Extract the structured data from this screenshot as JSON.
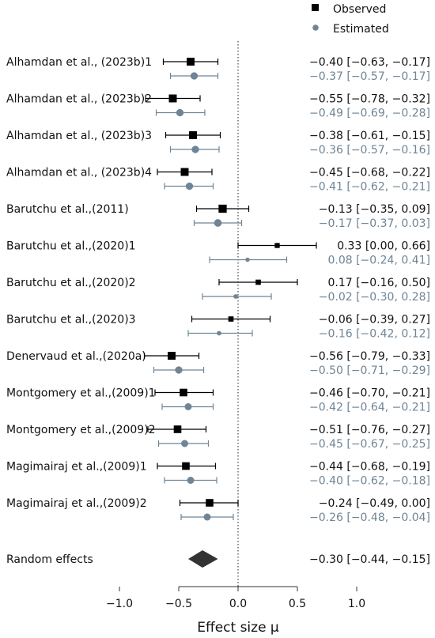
{
  "chart_data": {
    "type": "forest",
    "xlabel": "Effect size μ",
    "xlim": [
      -1.0,
      1.0
    ],
    "xticks": [
      "−1.0",
      "−0.5",
      "0.0",
      "0.5",
      "1.0"
    ],
    "xtick_values": [
      -1.0,
      -0.5,
      0.0,
      0.5,
      1.0
    ],
    "reference_line": 0,
    "colors": {
      "observed": "#000000",
      "estimated": "#6f8596",
      "pooled": "#333333"
    },
    "legend": [
      {
        "name": "Observed",
        "marker": "square"
      },
      {
        "name": "Estimated",
        "marker": "circle"
      }
    ],
    "studies": [
      {
        "label": "Alhamdan et al., (2023b)1",
        "weight": 0.9,
        "observed": {
          "est": -0.4,
          "lo": -0.63,
          "hi": -0.17,
          "text": "−0.40 [−0.63, −0.17]"
        },
        "estimated": {
          "est": -0.37,
          "lo": -0.57,
          "hi": -0.17,
          "text": "−0.37 [−0.57, −0.17]"
        }
      },
      {
        "label": "Alhamdan et al., (2023b)2",
        "weight": 0.9,
        "observed": {
          "est": -0.55,
          "lo": -0.78,
          "hi": -0.32,
          "text": "−0.55 [−0.78, −0.32]"
        },
        "estimated": {
          "est": -0.49,
          "lo": -0.69,
          "hi": -0.28,
          "text": "−0.49 [−0.69, −0.28]"
        }
      },
      {
        "label": "Alhamdan et al., (2023b)3",
        "weight": 0.9,
        "observed": {
          "est": -0.38,
          "lo": -0.61,
          "hi": -0.15,
          "text": "−0.38 [−0.61, −0.15]"
        },
        "estimated": {
          "est": -0.36,
          "lo": -0.57,
          "hi": -0.16,
          "text": "−0.36 [−0.57, −0.16]"
        }
      },
      {
        "label": "Alhamdan et al., (2023b)4",
        "weight": 0.9,
        "observed": {
          "est": -0.45,
          "lo": -0.68,
          "hi": -0.22,
          "text": "−0.45 [−0.68, −0.22]"
        },
        "estimated": {
          "est": -0.41,
          "lo": -0.62,
          "hi": -0.21,
          "text": "−0.41 [−0.62, −0.21]"
        }
      },
      {
        "label": "Barutchu et al.,(2011)",
        "weight": 0.95,
        "observed": {
          "est": -0.13,
          "lo": -0.35,
          "hi": 0.09,
          "text": "−0.13 [−0.35, 0.09]"
        },
        "estimated": {
          "est": -0.17,
          "lo": -0.37,
          "hi": 0.03,
          "text": "−0.17 [−0.37, 0.03]"
        }
      },
      {
        "label": "Barutchu et al.,(2020)1",
        "weight": 0.35,
        "observed": {
          "est": 0.33,
          "lo": 0.0,
          "hi": 0.66,
          "text": "0.33 [0.00, 0.66]"
        },
        "estimated": {
          "est": 0.08,
          "lo": -0.24,
          "hi": 0.41,
          "text": "0.08 [−0.24, 0.41]"
        }
      },
      {
        "label": "Barutchu et al.,(2020)2",
        "weight": 0.4,
        "observed": {
          "est": 0.17,
          "lo": -0.16,
          "hi": 0.5,
          "text": "0.17 [−0.16, 0.50]"
        },
        "estimated": {
          "est": -0.02,
          "lo": -0.3,
          "hi": 0.28,
          "text": "−0.02 [−0.30, 0.28]"
        }
      },
      {
        "label": "Barutchu et al.,(2020)3",
        "weight": 0.4,
        "observed": {
          "est": -0.06,
          "lo": -0.39,
          "hi": 0.27,
          "text": "−0.06 [−0.39, 0.27]"
        },
        "estimated": {
          "est": -0.16,
          "lo": -0.42,
          "hi": 0.12,
          "text": "−0.16 [−0.42, 0.12]"
        }
      },
      {
        "label": "Denervaud et al.,(2020a)",
        "weight": 0.9,
        "observed": {
          "est": -0.56,
          "lo": -0.79,
          "hi": -0.33,
          "text": "−0.56 [−0.79, −0.33]"
        },
        "estimated": {
          "est": -0.5,
          "lo": -0.71,
          "hi": -0.29,
          "text": "−0.50 [−0.71, −0.29]"
        }
      },
      {
        "label": "Montgomery et al.,(2009)1",
        "weight": 0.85,
        "observed": {
          "est": -0.46,
          "lo": -0.7,
          "hi": -0.21,
          "text": "−0.46 [−0.70, −0.21]"
        },
        "estimated": {
          "est": -0.42,
          "lo": -0.64,
          "hi": -0.21,
          "text": "−0.42 [−0.64, −0.21]"
        }
      },
      {
        "label": "Montgomery et al.,(2009)2",
        "weight": 0.85,
        "observed": {
          "est": -0.51,
          "lo": -0.76,
          "hi": -0.27,
          "text": "−0.51 [−0.76, −0.27]"
        },
        "estimated": {
          "est": -0.45,
          "lo": -0.67,
          "hi": -0.25,
          "text": "−0.45 [−0.67, −0.25]"
        }
      },
      {
        "label": "Magimairaj et al.,(2009)1",
        "weight": 0.85,
        "observed": {
          "est": -0.44,
          "lo": -0.68,
          "hi": -0.19,
          "text": "−0.44 [−0.68, −0.19]"
        },
        "estimated": {
          "est": -0.4,
          "lo": -0.62,
          "hi": -0.18,
          "text": "−0.40 [−0.62, −0.18]"
        }
      },
      {
        "label": "Magimairaj et al.,(2009)2",
        "weight": 0.85,
        "observed": {
          "est": -0.24,
          "lo": -0.49,
          "hi": 0.0,
          "text": "−0.24 [−0.49, 0.00]"
        },
        "estimated": {
          "est": -0.26,
          "lo": -0.48,
          "hi": -0.04,
          "text": "−0.26 [−0.48, −0.04]"
        }
      }
    ],
    "pooled": {
      "label": "Random effects",
      "est": -0.3,
      "lo": -0.44,
      "hi": -0.15,
      "text": "−0.30 [−0.44, −0.15]"
    }
  }
}
